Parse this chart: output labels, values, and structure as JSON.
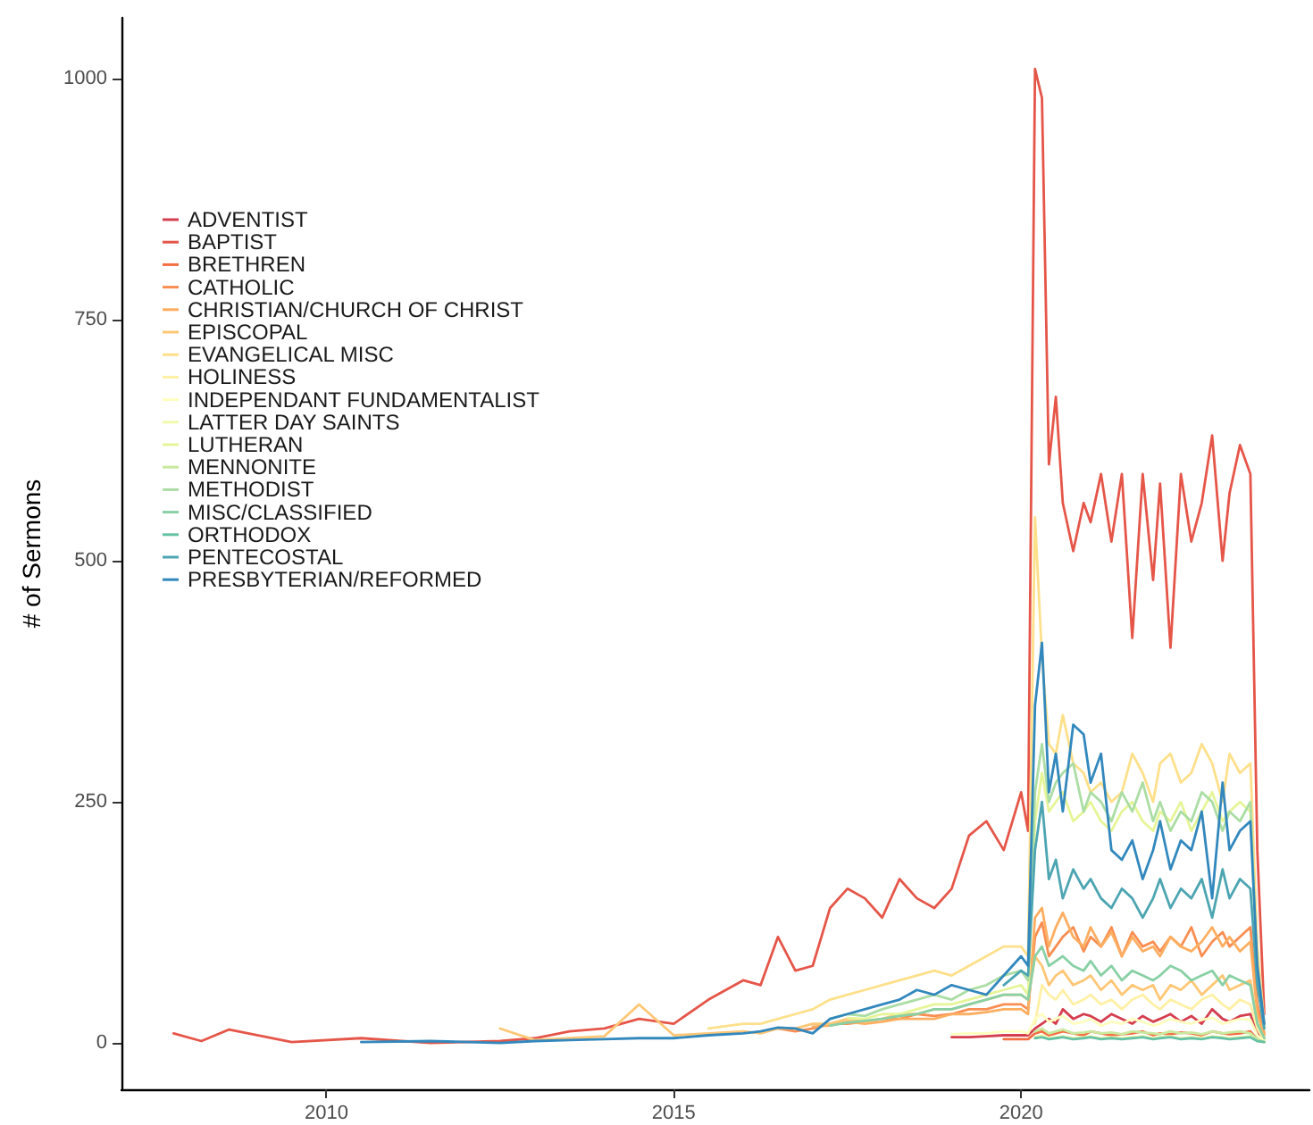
{
  "chart_data": {
    "type": "line",
    "ylabel": "# of Sermons",
    "x": [
      2007.8,
      2008.2,
      2008.6,
      2009.5,
      2010.5,
      2011.5,
      2012.5,
      2013,
      2013.5,
      2014,
      2014.5,
      2015,
      2015.5,
      2016,
      2016.25,
      2016.5,
      2016.75,
      2017,
      2017.25,
      2017.5,
      2017.75,
      2018,
      2018.25,
      2018.5,
      2018.75,
      2019,
      2019.25,
      2019.5,
      2019.75,
      2020,
      2020.1,
      2020.2,
      2020.3,
      2020.4,
      2020.5,
      2020.6,
      2020.75,
      2020.9,
      2021,
      2021.15,
      2021.3,
      2021.45,
      2021.6,
      2021.75,
      2021.9,
      2022,
      2022.15,
      2022.3,
      2022.45,
      2022.6,
      2022.75,
      2022.9,
      2023,
      2023.15,
      2023.3,
      2023.4,
      2023.5
    ],
    "xlim": [
      2007.05,
      2024.15
    ],
    "xticks": [
      2010,
      2015,
      2020
    ],
    "ylim": [
      -48,
      1063
    ],
    "yticks": [
      0,
      250,
      500,
      750,
      1000
    ],
    "grid": false,
    "legend": "top left",
    "marker": "none",
    "line_style": "solid",
    "series": [
      {
        "name": "ADVENTIST",
        "color": "#d53e4f",
        "values": [
          null,
          null,
          null,
          null,
          null,
          null,
          null,
          null,
          null,
          null,
          null,
          null,
          null,
          null,
          null,
          null,
          null,
          null,
          null,
          null,
          null,
          null,
          null,
          null,
          null,
          6,
          6,
          7,
          8,
          8,
          8,
          15,
          20,
          25,
          20,
          35,
          25,
          30,
          28,
          22,
          30,
          25,
          20,
          28,
          22,
          25,
          30,
          22,
          28,
          20,
          35,
          25,
          22,
          28,
          30,
          10,
          2
        ]
      },
      {
        "name": "BAPTIST",
        "color": "#e55649",
        "values": [
          10,
          2,
          14,
          1,
          5,
          0,
          2,
          5,
          12,
          15,
          25,
          20,
          45,
          65,
          60,
          110,
          75,
          80,
          140,
          160,
          150,
          130,
          170,
          150,
          140,
          160,
          215,
          230,
          200,
          260,
          220,
          1010,
          980,
          600,
          670,
          560,
          510,
          560,
          540,
          590,
          520,
          590,
          420,
          590,
          480,
          580,
          410,
          590,
          520,
          560,
          630,
          500,
          570,
          620,
          590,
          200,
          30
        ]
      },
      {
        "name": "BRETHREN",
        "color": "#f46d43",
        "values": [
          null,
          null,
          null,
          null,
          null,
          null,
          null,
          null,
          null,
          null,
          null,
          null,
          null,
          null,
          null,
          null,
          null,
          null,
          null,
          null,
          null,
          null,
          null,
          null,
          null,
          null,
          null,
          null,
          4,
          4,
          4,
          10,
          12,
          8,
          10,
          12,
          10,
          8,
          12,
          10,
          8,
          9,
          10,
          12,
          8,
          10,
          9,
          11,
          10,
          8,
          12,
          10,
          9,
          10,
          12,
          4,
          1
        ]
      },
      {
        "name": "CATHOLIC",
        "color": "#f98e52",
        "values": [
          null,
          null,
          null,
          null,
          null,
          null,
          null,
          null,
          null,
          null,
          null,
          null,
          null,
          null,
          null,
          15,
          12,
          15,
          20,
          20,
          22,
          25,
          25,
          30,
          28,
          30,
          35,
          35,
          40,
          40,
          35,
          110,
          125,
          90,
          100,
          110,
          120,
          95,
          110,
          100,
          120,
          90,
          115,
          100,
          105,
          95,
          110,
          100,
          120,
          90,
          105,
          115,
          100,
          110,
          120,
          40,
          10
        ]
      },
      {
        "name": "CHRISTIAN/CHURCH OF CHRIST",
        "color": "#fdae61",
        "values": [
          null,
          null,
          null,
          null,
          null,
          null,
          null,
          null,
          null,
          null,
          null,
          null,
          null,
          null,
          null,
          null,
          null,
          17,
          18,
          22,
          20,
          22,
          25,
          25,
          25,
          30,
          30,
          32,
          35,
          35,
          30,
          130,
          140,
          100,
          120,
          135,
          110,
          100,
          120,
          100,
          115,
          90,
          110,
          95,
          100,
          90,
          110,
          100,
          95,
          105,
          120,
          100,
          110,
          95,
          105,
          30,
          8
        ]
      },
      {
        "name": "EPISCOPAL",
        "color": "#fec776",
        "values": [
          null,
          null,
          null,
          null,
          null,
          null,
          15,
          3,
          5,
          7,
          40,
          8,
          10,
          12,
          10,
          15,
          15,
          20,
          20,
          25,
          22,
          25,
          30,
          30,
          35,
          35,
          40,
          45,
          50,
          50,
          45,
          90,
          80,
          60,
          70,
          75,
          60,
          65,
          70,
          55,
          65,
          50,
          60,
          55,
          60,
          45,
          60,
          55,
          65,
          50,
          60,
          70,
          55,
          60,
          65,
          20,
          5
        ]
      },
      {
        "name": "EVANGELICAL MISC",
        "color": "#fee08b",
        "values": [
          null,
          null,
          null,
          null,
          null,
          null,
          null,
          null,
          null,
          null,
          null,
          null,
          15,
          20,
          20,
          25,
          30,
          35,
          45,
          50,
          55,
          60,
          65,
          70,
          75,
          70,
          80,
          90,
          100,
          100,
          90,
          545,
          400,
          310,
          300,
          340,
          290,
          280,
          260,
          270,
          250,
          260,
          300,
          280,
          250,
          290,
          300,
          270,
          280,
          310,
          290,
          250,
          300,
          280,
          290,
          100,
          20
        ]
      },
      {
        "name": "HOLINESS",
        "color": "#fff0a5",
        "values": [
          null,
          null,
          null,
          null,
          null,
          null,
          null,
          null,
          null,
          null,
          null,
          null,
          null,
          null,
          null,
          null,
          null,
          null,
          null,
          null,
          null,
          null,
          null,
          null,
          null,
          null,
          null,
          null,
          null,
          null,
          null,
          20,
          60,
          50,
          45,
          55,
          40,
          45,
          50,
          40,
          45,
          35,
          45,
          50,
          40,
          35,
          45,
          40,
          35,
          45,
          50,
          40,
          35,
          45,
          40,
          15,
          3
        ]
      },
      {
        "name": "INDEPENDANT FUNDAMENTALIST",
        "color": "#ffffbf",
        "values": [
          null,
          null,
          null,
          null,
          null,
          null,
          null,
          null,
          null,
          null,
          null,
          null,
          null,
          null,
          null,
          null,
          null,
          null,
          null,
          null,
          null,
          null,
          null,
          null,
          null,
          9,
          10,
          10,
          12,
          12,
          10,
          25,
          30,
          22,
          25,
          28,
          20,
          22,
          25,
          18,
          22,
          20,
          25,
          22,
          18,
          20,
          25,
          22,
          20,
          24,
          26,
          20,
          22,
          25,
          24,
          8,
          2
        ]
      },
      {
        "name": "LATTER DAY SAINTS",
        "color": "#f3faac",
        "values": [
          null,
          null,
          null,
          null,
          null,
          null,
          null,
          null,
          null,
          null,
          null,
          null,
          null,
          null,
          null,
          null,
          null,
          null,
          null,
          null,
          null,
          null,
          null,
          null,
          null,
          null,
          null,
          null,
          null,
          null,
          null,
          6,
          8,
          5,
          6,
          7,
          5,
          6,
          7,
          5,
          6,
          5,
          6,
          7,
          5,
          6,
          7,
          5,
          6,
          5,
          7,
          6,
          5,
          6,
          7,
          2,
          1
        ]
      },
      {
        "name": "LUTHERAN",
        "color": "#e6f598",
        "values": [
          null,
          null,
          null,
          null,
          null,
          null,
          null,
          null,
          null,
          null,
          null,
          null,
          null,
          null,
          null,
          null,
          null,
          null,
          null,
          26,
          25,
          30,
          30,
          35,
          40,
          40,
          45,
          50,
          55,
          60,
          50,
          230,
          280,
          240,
          250,
          260,
          230,
          240,
          250,
          230,
          220,
          240,
          250,
          230,
          220,
          240,
          230,
          250,
          220,
          240,
          260,
          230,
          240,
          250,
          240,
          70,
          15
        ]
      },
      {
        "name": "MENNONITE",
        "color": "#c9e99e",
        "values": [
          null,
          null,
          null,
          null,
          null,
          null,
          null,
          null,
          null,
          null,
          null,
          null,
          null,
          null,
          null,
          null,
          null,
          null,
          null,
          null,
          null,
          null,
          null,
          null,
          null,
          null,
          null,
          null,
          null,
          null,
          null,
          12,
          15,
          10,
          12,
          14,
          10,
          11,
          12,
          10,
          11,
          9,
          12,
          11,
          10,
          9,
          12,
          10,
          11,
          9,
          12,
          10,
          11,
          12,
          10,
          4,
          1
        ]
      },
      {
        "name": "METHODIST",
        "color": "#abdda4",
        "values": [
          null,
          null,
          null,
          null,
          null,
          null,
          null,
          null,
          null,
          null,
          null,
          null,
          null,
          null,
          null,
          null,
          null,
          null,
          25,
          30,
          28,
          35,
          40,
          45,
          50,
          45,
          55,
          60,
          70,
          75,
          65,
          260,
          310,
          250,
          270,
          280,
          290,
          240,
          260,
          250,
          230,
          260,
          240,
          270,
          230,
          250,
          220,
          240,
          230,
          260,
          250,
          220,
          240,
          230,
          250,
          70,
          15
        ]
      },
      {
        "name": "MISC/CLASSIFIED",
        "color": "#89d0a5",
        "values": [
          null,
          null,
          null,
          null,
          null,
          null,
          null,
          null,
          null,
          null,
          null,
          null,
          null,
          null,
          null,
          null,
          null,
          null,
          18,
          21,
          23,
          25,
          28,
          30,
          35,
          35,
          40,
          45,
          50,
          50,
          45,
          90,
          100,
          80,
          85,
          90,
          80,
          75,
          85,
          70,
          80,
          65,
          75,
          70,
          65,
          70,
          80,
          75,
          65,
          70,
          75,
          60,
          70,
          65,
          60,
          20,
          5
        ]
      },
      {
        "name": "ORTHODOX",
        "color": "#66c2a5",
        "values": [
          null,
          null,
          null,
          null,
          null,
          null,
          null,
          null,
          null,
          null,
          null,
          null,
          null,
          null,
          null,
          null,
          null,
          null,
          null,
          null,
          null,
          null,
          null,
          null,
          null,
          null,
          null,
          null,
          null,
          null,
          null,
          5,
          6,
          4,
          5,
          6,
          4,
          5,
          6,
          4,
          5,
          4,
          5,
          6,
          4,
          5,
          6,
          4,
          5,
          4,
          6,
          5,
          4,
          5,
          6,
          2,
          1
        ]
      },
      {
        "name": "PENTECOSTAL",
        "color": "#4ca5b1",
        "values": [
          null,
          null,
          null,
          null,
          null,
          null,
          null,
          null,
          null,
          null,
          null,
          null,
          null,
          null,
          null,
          null,
          null,
          null,
          null,
          null,
          null,
          null,
          null,
          null,
          null,
          null,
          null,
          null,
          60,
          75,
          70,
          200,
          250,
          170,
          190,
          150,
          180,
          160,
          170,
          150,
          140,
          160,
          150,
          130,
          150,
          170,
          140,
          160,
          150,
          170,
          130,
          180,
          150,
          170,
          160,
          60,
          15
        ]
      },
      {
        "name": "PRESBYTERIAN/REFORMED",
        "color": "#3288bd",
        "values": [
          null,
          null,
          null,
          null,
          1,
          2,
          0,
          2,
          3,
          4,
          5,
          5,
          8,
          10,
          12,
          16,
          15,
          10,
          25,
          30,
          35,
          40,
          45,
          55,
          50,
          60,
          55,
          50,
          70,
          90,
          80,
          350,
          415,
          260,
          300,
          240,
          330,
          320,
          270,
          300,
          200,
          190,
          210,
          170,
          200,
          230,
          180,
          210,
          200,
          240,
          150,
          270,
          200,
          220,
          230,
          80,
          20
        ]
      }
    ]
  }
}
